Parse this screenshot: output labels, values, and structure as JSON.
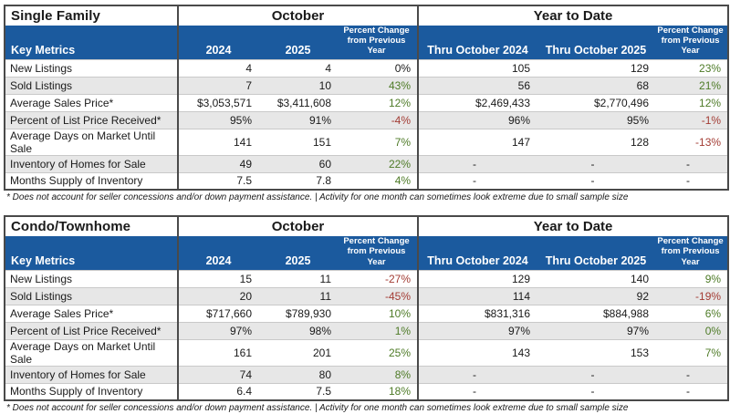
{
  "colors": {
    "header_blue": "#1b5a9e",
    "positive": "#4e7b27",
    "negative": "#a33c34",
    "row_alt": "#e7e7e7"
  },
  "group_headers": {
    "month": "October",
    "ytd": "Year to Date"
  },
  "column_headers": {
    "key_metrics": "Key Metrics",
    "oct_2024": "2024",
    "oct_2025": "2025",
    "ytd_2024": "Thru October 2024",
    "ytd_2025": "Thru October 2025",
    "pct_line1": "Percent Change",
    "pct_line2": "from Previous Year"
  },
  "footnote": "* Does not account for seller concessions and/or down payment assistance. | Activity for one month can sometimes look extreme due to small sample size",
  "tables": [
    {
      "title": "Single Family",
      "rows": [
        {
          "metric": "New Listings",
          "cells": [
            {
              "v": "4",
              "s": "num"
            },
            {
              "v": "4",
              "s": "num"
            },
            {
              "v": "0%",
              "s": "neu"
            },
            {
              "v": "105",
              "s": "num"
            },
            {
              "v": "129",
              "s": "num"
            },
            {
              "v": "23%",
              "s": "pos"
            }
          ]
        },
        {
          "metric": "Sold Listings",
          "cells": [
            {
              "v": "7",
              "s": "num"
            },
            {
              "v": "10",
              "s": "num"
            },
            {
              "v": "43%",
              "s": "pos"
            },
            {
              "v": "56",
              "s": "num"
            },
            {
              "v": "68",
              "s": "num"
            },
            {
              "v": "21%",
              "s": "pos"
            }
          ]
        },
        {
          "metric": "Average Sales Price*",
          "cells": [
            {
              "v": "$3,053,571",
              "s": "num"
            },
            {
              "v": "$3,411,608",
              "s": "num"
            },
            {
              "v": "12%",
              "s": "pos"
            },
            {
              "v": "$2,469,433",
              "s": "num"
            },
            {
              "v": "$2,770,496",
              "s": "num"
            },
            {
              "v": "12%",
              "s": "pos"
            }
          ]
        },
        {
          "metric": "Percent of List Price Received*",
          "cells": [
            {
              "v": "95%",
              "s": "num"
            },
            {
              "v": "91%",
              "s": "num"
            },
            {
              "v": "-4%",
              "s": "neg"
            },
            {
              "v": "96%",
              "s": "num"
            },
            {
              "v": "95%",
              "s": "num"
            },
            {
              "v": "-1%",
              "s": "neg"
            }
          ]
        },
        {
          "metric": "Average Days on Market Until Sale",
          "cells": [
            {
              "v": "141",
              "s": "num"
            },
            {
              "v": "151",
              "s": "num"
            },
            {
              "v": "7%",
              "s": "pos"
            },
            {
              "v": "147",
              "s": "num"
            },
            {
              "v": "128",
              "s": "num"
            },
            {
              "v": "-13%",
              "s": "neg"
            }
          ]
        },
        {
          "metric": "Inventory of Homes for Sale",
          "cells": [
            {
              "v": "49",
              "s": "num"
            },
            {
              "v": "60",
              "s": "num"
            },
            {
              "v": "22%",
              "s": "pos"
            },
            {
              "v": "-",
              "s": "dash"
            },
            {
              "v": "-",
              "s": "dash"
            },
            {
              "v": "-",
              "s": "dash"
            }
          ]
        },
        {
          "metric": "Months Supply of Inventory",
          "cells": [
            {
              "v": "7.5",
              "s": "num"
            },
            {
              "v": "7.8",
              "s": "num"
            },
            {
              "v": "4%",
              "s": "pos"
            },
            {
              "v": "-",
              "s": "dash"
            },
            {
              "v": "-",
              "s": "dash"
            },
            {
              "v": "-",
              "s": "dash"
            }
          ]
        }
      ]
    },
    {
      "title": "Condo/Townhome",
      "rows": [
        {
          "metric": "New Listings",
          "cells": [
            {
              "v": "15",
              "s": "num"
            },
            {
              "v": "11",
              "s": "num"
            },
            {
              "v": "-27%",
              "s": "neg"
            },
            {
              "v": "129",
              "s": "num"
            },
            {
              "v": "140",
              "s": "num"
            },
            {
              "v": "9%",
              "s": "pos"
            }
          ]
        },
        {
          "metric": "Sold Listings",
          "cells": [
            {
              "v": "20",
              "s": "num"
            },
            {
              "v": "11",
              "s": "num"
            },
            {
              "v": "-45%",
              "s": "neg"
            },
            {
              "v": "114",
              "s": "num"
            },
            {
              "v": "92",
              "s": "num"
            },
            {
              "v": "-19%",
              "s": "neg"
            }
          ]
        },
        {
          "metric": "Average Sales Price*",
          "cells": [
            {
              "v": "$717,660",
              "s": "num"
            },
            {
              "v": "$789,930",
              "s": "num"
            },
            {
              "v": "10%",
              "s": "pos"
            },
            {
              "v": "$831,316",
              "s": "num"
            },
            {
              "v": "$884,988",
              "s": "num"
            },
            {
              "v": "6%",
              "s": "pos"
            }
          ]
        },
        {
          "metric": "Percent of List Price Received*",
          "cells": [
            {
              "v": "97%",
              "s": "num"
            },
            {
              "v": "98%",
              "s": "num"
            },
            {
              "v": "1%",
              "s": "pos"
            },
            {
              "v": "97%",
              "s": "num"
            },
            {
              "v": "97%",
              "s": "num"
            },
            {
              "v": "0%",
              "s": "pos"
            }
          ]
        },
        {
          "metric": "Average Days on Market Until Sale",
          "cells": [
            {
              "v": "161",
              "s": "num"
            },
            {
              "v": "201",
              "s": "num"
            },
            {
              "v": "25%",
              "s": "pos"
            },
            {
              "v": "143",
              "s": "num"
            },
            {
              "v": "153",
              "s": "num"
            },
            {
              "v": "7%",
              "s": "pos"
            }
          ]
        },
        {
          "metric": "Inventory of Homes for Sale",
          "cells": [
            {
              "v": "74",
              "s": "num"
            },
            {
              "v": "80",
              "s": "num"
            },
            {
              "v": "8%",
              "s": "pos"
            },
            {
              "v": "-",
              "s": "dash"
            },
            {
              "v": "-",
              "s": "dash"
            },
            {
              "v": "-",
              "s": "dash"
            }
          ]
        },
        {
          "metric": "Months Supply of Inventory",
          "cells": [
            {
              "v": "6.4",
              "s": "num"
            },
            {
              "v": "7.5",
              "s": "num"
            },
            {
              "v": "18%",
              "s": "pos"
            },
            {
              "v": "-",
              "s": "dash"
            },
            {
              "v": "-",
              "s": "dash"
            },
            {
              "v": "-",
              "s": "dash"
            }
          ]
        }
      ]
    }
  ]
}
